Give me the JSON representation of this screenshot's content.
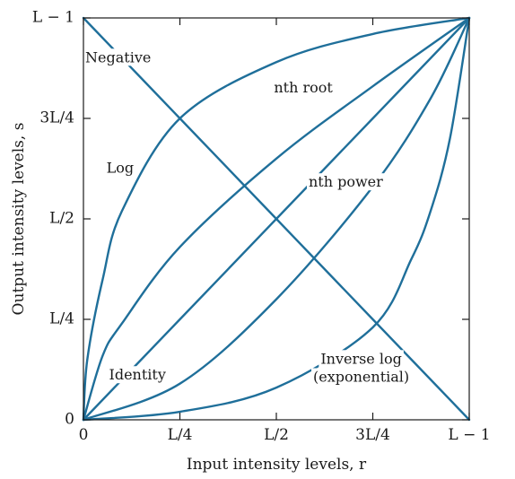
{
  "chart_data": {
    "type": "line",
    "xlabel": "Input intensity levels, r",
    "ylabel": "Output intensity levels, s",
    "x_range": [
      0,
      1
    ],
    "y_range": [
      0,
      1
    ],
    "grid": false,
    "x_ticks": [
      {
        "value": 0,
        "label": "0"
      },
      {
        "value": 0.25,
        "label": "L/4"
      },
      {
        "value": 0.5,
        "label": "L/2"
      },
      {
        "value": 0.75,
        "label": "3L/4"
      },
      {
        "value": 1,
        "label": "L − 1"
      }
    ],
    "y_ticks": [
      {
        "value": 0,
        "label": "0"
      },
      {
        "value": 0.25,
        "label": "L/4"
      },
      {
        "value": 0.5,
        "label": "L/2"
      },
      {
        "value": 0.75,
        "label": "3L/4"
      },
      {
        "value": 1,
        "label": "L − 1"
      }
    ],
    "series": [
      {
        "name": "Negative",
        "x": [
          0,
          0.25,
          0.5,
          0.75,
          1
        ],
        "y": [
          1,
          0.75,
          0.5,
          0.25,
          0
        ]
      },
      {
        "name": "Log",
        "x": [
          0,
          0.01,
          0.05,
          0.1,
          0.25,
          0.5,
          0.75,
          1
        ],
        "y": [
          0,
          0.15,
          0.35,
          0.52,
          0.75,
          0.89,
          0.96,
          1
        ]
      },
      {
        "name": "nth root",
        "x": [
          0,
          0.05,
          0.1,
          0.25,
          0.5,
          0.75,
          1
        ],
        "y": [
          0,
          0.16,
          0.24,
          0.43,
          0.65,
          0.83,
          1
        ]
      },
      {
        "name": "Identity",
        "x": [
          0,
          0.25,
          0.5,
          0.75,
          1
        ],
        "y": [
          0,
          0.25,
          0.5,
          0.75,
          1
        ]
      },
      {
        "name": "nth power",
        "x": [
          0,
          0.25,
          0.5,
          0.75,
          0.9,
          1
        ],
        "y": [
          0,
          0.09,
          0.3,
          0.58,
          0.8,
          1
        ]
      },
      {
        "name": "Inverse log (exponential)",
        "x": [
          0,
          0.25,
          0.5,
          0.75,
          0.85,
          0.9,
          0.95,
          1
        ],
        "y": [
          0,
          0.02,
          0.08,
          0.23,
          0.4,
          0.52,
          0.7,
          1
        ]
      }
    ],
    "annotations": [
      {
        "text": "Negative",
        "x": 0.09,
        "y": 0.9
      },
      {
        "text": "Log",
        "x": 0.095,
        "y": 0.625
      },
      {
        "text": "nth root",
        "x": 0.57,
        "y": 0.825
      },
      {
        "text": "nth power",
        "x": 0.68,
        "y": 0.59
      },
      {
        "text": "Identity",
        "x": 0.14,
        "y": 0.11
      },
      {
        "text": "Inverse log",
        "x": 0.72,
        "y": 0.15
      },
      {
        "text": "(exponential)",
        "x": 0.72,
        "y": 0.105
      }
    ]
  },
  "colors": {
    "curve": "#1f6f9a",
    "frame": "#1a1a1a",
    "text": "#1a1a1a"
  }
}
